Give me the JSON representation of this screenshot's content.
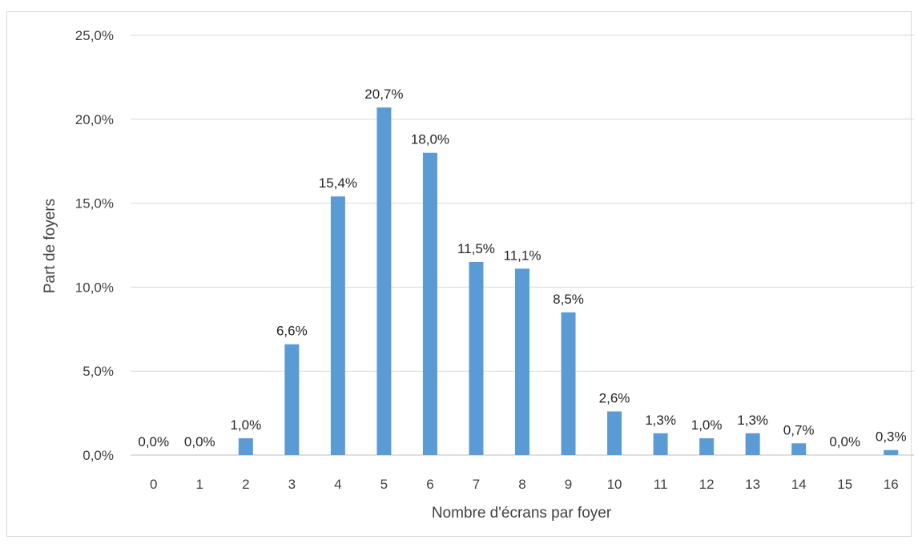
{
  "chart_data": {
    "type": "bar",
    "title": "",
    "xlabel": "Nombre d'écrans par foyer",
    "ylabel": "Part de foyers",
    "categories": [
      "0",
      "1",
      "2",
      "3",
      "4",
      "5",
      "6",
      "7",
      "8",
      "9",
      "10",
      "11",
      "12",
      "13",
      "14",
      "15",
      "16"
    ],
    "values": [
      0.0,
      0.0,
      1.0,
      6.6,
      15.4,
      20.7,
      18.0,
      11.5,
      11.1,
      8.5,
      2.6,
      1.3,
      1.0,
      1.3,
      0.7,
      0.0,
      0.3
    ],
    "data_labels": [
      "0,0%",
      "0,0%",
      "1,0%",
      "6,6%",
      "15,4%",
      "20,7%",
      "18,0%",
      "11,5%",
      "11,1%",
      "8,5%",
      "2,6%",
      "1,3%",
      "1,0%",
      "1,3%",
      "0,7%",
      "0,0%",
      "0,3%"
    ],
    "yticks": [
      0,
      5,
      10,
      15,
      20,
      25
    ],
    "ytick_labels": [
      "0,0%",
      "5,0%",
      "10,0%",
      "15,0%",
      "20,0%",
      "25,0%"
    ],
    "ylim": [
      0,
      25
    ],
    "grid": true,
    "legend": "none",
    "colors": {
      "bar": "#5b9bd5",
      "grid": "#d9d9d9",
      "axis": "#bfbfbf"
    }
  }
}
